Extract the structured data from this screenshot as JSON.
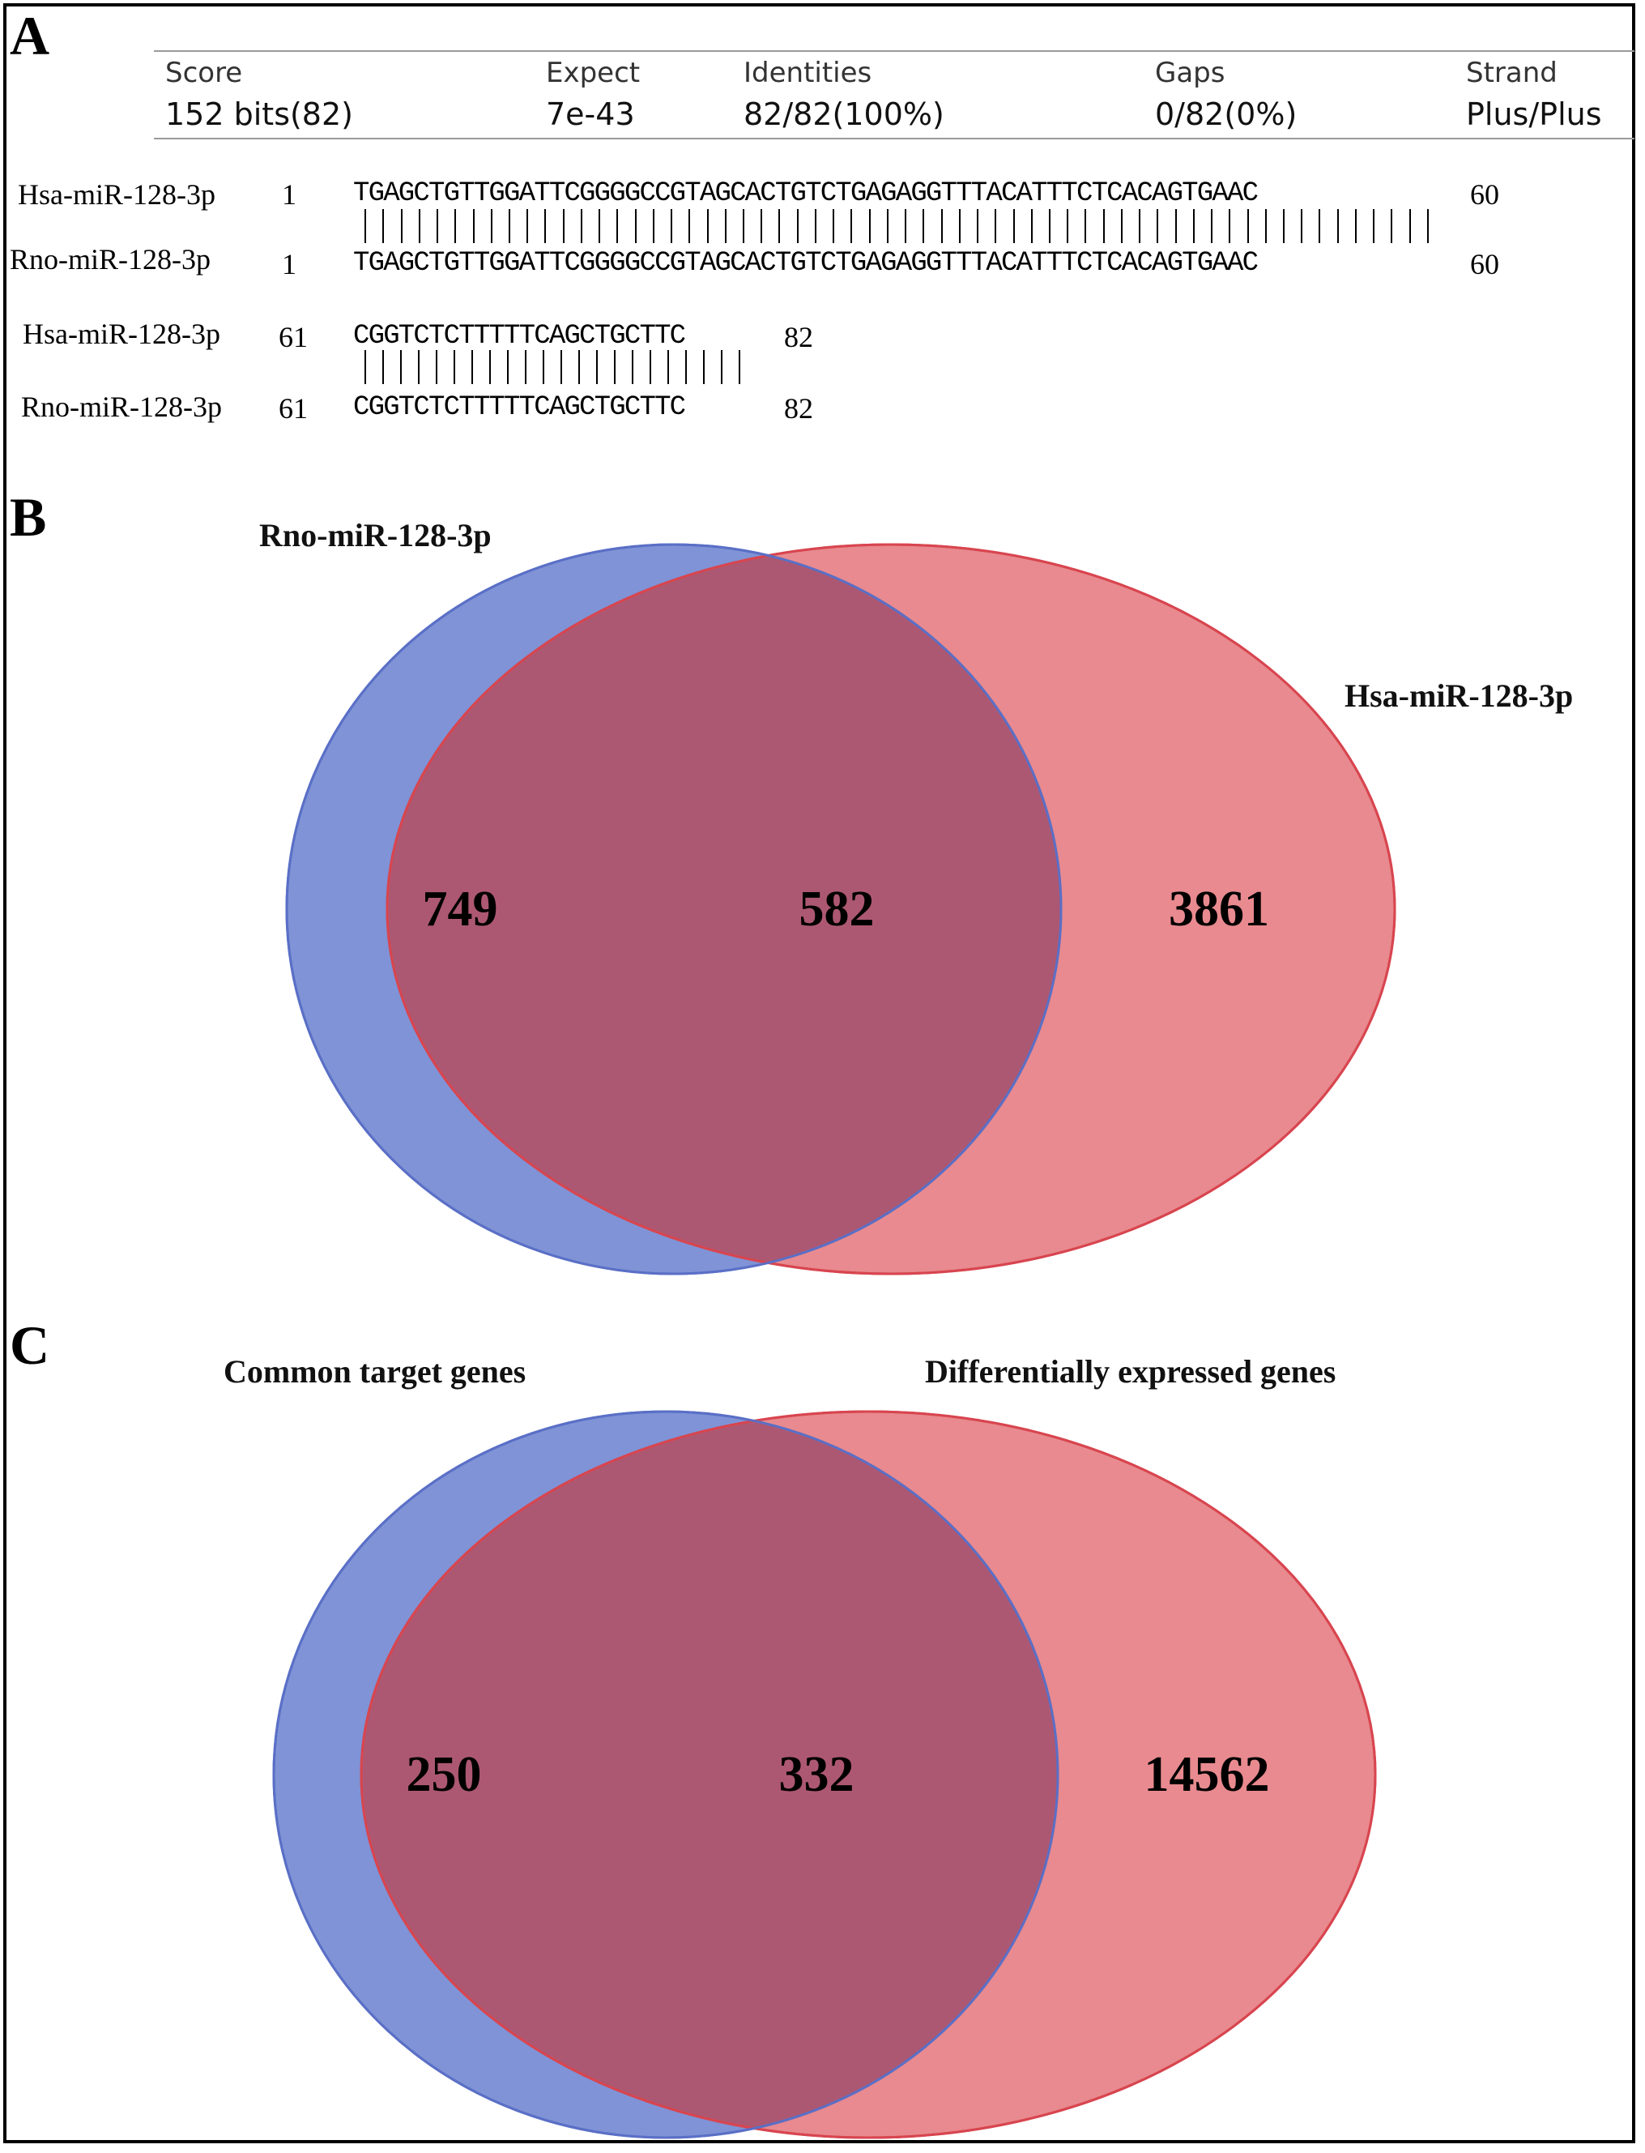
{
  "panels": {
    "a": {
      "letter": "A",
      "blast": {
        "score_label": "Score",
        "score_value": "152 bits(82)",
        "expect_label": "Expect",
        "expect_value": "7e-43",
        "identities_label": "Identities",
        "identities_value": "82/82(100%)",
        "gaps_label": "Gaps",
        "gaps_value": "0/82(0%)",
        "strand_label": "Strand",
        "strand_value": "Plus/Plus"
      },
      "alignment": [
        {
          "query_name": "Hsa-miR-128-3p",
          "query_start": "1",
          "query_seq": "TGAGCTGTTGGATTCGGGGCCGTAGCACTGTCTGAGAGGTTTACATTTCTCACAGTGAAC",
          "query_end": "60",
          "subject_name": "Rno-miR-128-3p",
          "subject_start": "1",
          "subject_seq": "TGAGCTGTTGGATTCGGGGCCGTAGCACTGTCTGAGAGGTTTACATTTCTCACAGTGAAC",
          "subject_end": "60",
          "match_count": 60
        },
        {
          "query_name": "Hsa-miR-128-3p",
          "query_start": "61",
          "query_seq": "CGGTCTCTTTTTCAGCTGCTTC",
          "query_end": "82",
          "subject_name": "Rno-miR-128-3p",
          "subject_start": "61",
          "subject_seq": "CGGTCTCTTTTTCAGCTGCTTC",
          "subject_end": "82",
          "match_count": 22
        }
      ]
    },
    "b": {
      "letter": "B",
      "left_set": "Rno-miR-128-3p",
      "right_set": "Hsa-miR-128-3p",
      "left_only": "749",
      "overlap": "582",
      "right_only": "3861"
    },
    "c": {
      "letter": "C",
      "left_set": "Common target genes",
      "right_set": "Differentially expressed genes",
      "left_only": "250",
      "overlap": "332",
      "right_only": "14562"
    }
  },
  "colors": {
    "left_fill": "#7f93d6",
    "left_stroke": "#5a6fc6",
    "right_fill": "#e3737a",
    "right_stroke": "#d8454f",
    "overlap_fill": "#ad5872"
  }
}
